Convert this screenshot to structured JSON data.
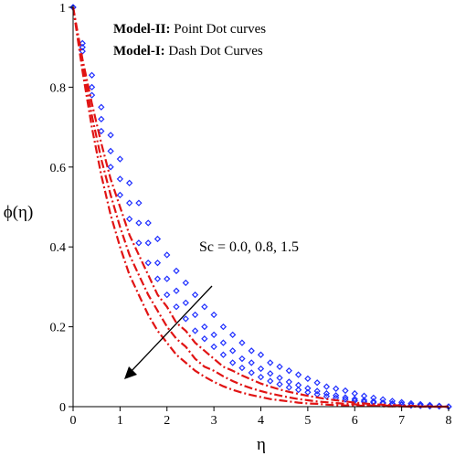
{
  "chart_data": {
    "type": "line",
    "xlabel": "η",
    "ylabel": "ϕ(η)",
    "xlim": [
      0,
      8
    ],
    "ylim": [
      0,
      1
    ],
    "x_ticks": [
      "0",
      "1",
      "2",
      "3",
      "4",
      "5",
      "6",
      "7",
      "8"
    ],
    "y_ticks": [
      "0",
      "0.2",
      "0.4",
      "0.6",
      "0.8",
      "1"
    ],
    "legend": [
      {
        "bold": "Model-II:",
        "text": " Point Dot curves"
      },
      {
        "bold": "Model-I:",
        "text": " Dash Dot Curves"
      }
    ],
    "annotation": "Sc = 0.0, 0.8, 1.5",
    "colors": {
      "model_ii": "#1f2fff",
      "model_i": "#e11414",
      "arrow": "#000000"
    },
    "series": [
      {
        "model": "Model-II",
        "style": "point-dot",
        "color": "#1f2fff",
        "x": [
          0,
          0.2,
          0.4,
          0.6,
          0.8,
          1,
          1.2,
          1.4,
          1.6,
          1.8,
          2,
          2.2,
          2.4,
          2.6,
          2.8,
          3,
          3.2,
          3.4,
          3.6,
          3.8,
          4,
          4.2,
          4.4,
          4.6,
          4.8,
          5,
          5.2,
          5.4,
          5.6,
          5.8,
          6,
          6.2,
          6.4,
          6.6,
          6.8,
          7,
          7.2,
          7.4,
          7.6,
          7.8,
          8
        ],
        "y": [
          1,
          0.91,
          0.83,
          0.75,
          0.68,
          0.62,
          0.56,
          0.51,
          0.46,
          0.42,
          0.38,
          0.34,
          0.31,
          0.28,
          0.25,
          0.23,
          0.2,
          0.18,
          0.16,
          0.14,
          0.13,
          0.11,
          0.1,
          0.09,
          0.08,
          0.07,
          0.06,
          0.05,
          0.045,
          0.04,
          0.033,
          0.027,
          0.022,
          0.018,
          0.014,
          0.011,
          0.008,
          0.006,
          0.004,
          0.002,
          0
        ]
      },
      {
        "model": "Model-II",
        "style": "point-dot",
        "color": "#1f2fff",
        "x": [
          0,
          0.2,
          0.4,
          0.6,
          0.8,
          1,
          1.2,
          1.4,
          1.6,
          1.8,
          2,
          2.2,
          2.4,
          2.6,
          2.8,
          3,
          3.2,
          3.4,
          3.6,
          3.8,
          4,
          4.2,
          4.4,
          4.6,
          4.8,
          5,
          5.2,
          5.4,
          5.6,
          5.8,
          6,
          6.2,
          6.4,
          6.6,
          6.8,
          7,
          7.2,
          7.4,
          7.6,
          7.8,
          8
        ],
        "y": [
          1,
          0.9,
          0.8,
          0.72,
          0.64,
          0.57,
          0.51,
          0.46,
          0.41,
          0.36,
          0.32,
          0.29,
          0.26,
          0.23,
          0.2,
          0.18,
          0.16,
          0.14,
          0.12,
          0.11,
          0.095,
          0.083,
          0.072,
          0.062,
          0.054,
          0.046,
          0.039,
          0.033,
          0.028,
          0.023,
          0.019,
          0.016,
          0.013,
          0.01,
          0.008,
          0.006,
          0.004,
          0.003,
          0.002,
          0.001,
          0
        ]
      },
      {
        "model": "Model-II",
        "style": "point-dot",
        "color": "#1f2fff",
        "x": [
          0,
          0.2,
          0.4,
          0.6,
          0.8,
          1,
          1.2,
          1.4,
          1.6,
          1.8,
          2,
          2.2,
          2.4,
          2.6,
          2.8,
          3,
          3.2,
          3.4,
          3.6,
          3.8,
          4,
          4.2,
          4.4,
          4.6,
          4.8,
          5,
          5.2,
          5.4,
          5.6,
          5.8,
          6,
          6.2,
          6.4,
          6.6,
          6.8,
          7,
          7.2,
          7.4,
          7.6,
          7.8,
          8
        ],
        "y": [
          1,
          0.89,
          0.78,
          0.69,
          0.6,
          0.53,
          0.47,
          0.41,
          0.36,
          0.32,
          0.28,
          0.25,
          0.22,
          0.19,
          0.17,
          0.15,
          0.13,
          0.11,
          0.097,
          0.085,
          0.074,
          0.064,
          0.056,
          0.048,
          0.042,
          0.036,
          0.031,
          0.026,
          0.022,
          0.018,
          0.015,
          0.012,
          0.01,
          0.008,
          0.006,
          0.005,
          0.003,
          0.002,
          0.001,
          0.001,
          0
        ]
      },
      {
        "model": "Model-I",
        "style": "dash-dot",
        "color": "#e11414",
        "x": [
          0,
          0.2,
          0.4,
          0.6,
          0.8,
          1,
          1.2,
          1.4,
          1.6,
          1.8,
          2,
          2.2,
          2.4,
          2.6,
          2.8,
          3,
          3.2,
          3.4,
          3.6,
          3.8,
          4,
          4.2,
          4.4,
          4.6,
          4.8,
          5,
          5.2,
          5.4,
          5.6,
          5.8,
          6,
          6.2,
          6.4,
          6.6,
          6.8,
          7,
          7.2,
          7.4,
          7.6,
          7.8,
          8
        ],
        "y": [
          1,
          0.87,
          0.76,
          0.66,
          0.57,
          0.5,
          0.43,
          0.38,
          0.33,
          0.28,
          0.25,
          0.21,
          0.19,
          0.16,
          0.14,
          0.12,
          0.1,
          0.09,
          0.078,
          0.068,
          0.058,
          0.05,
          0.043,
          0.037,
          0.032,
          0.027,
          0.023,
          0.019,
          0.016,
          0.013,
          0.01,
          0.008,
          0.006,
          0.005,
          0.004,
          0.003,
          0.002,
          0.001,
          0.001,
          0,
          0
        ]
      },
      {
        "model": "Model-I",
        "style": "dash-dot",
        "color": "#e11414",
        "x": [
          0,
          0.2,
          0.4,
          0.6,
          0.8,
          1,
          1.2,
          1.4,
          1.6,
          1.8,
          2,
          2.2,
          2.4,
          2.6,
          2.8,
          3,
          3.2,
          3.4,
          3.6,
          3.8,
          4,
          4.2,
          4.4,
          4.6,
          4.8,
          5,
          5.2,
          5.4,
          5.6,
          5.8,
          6,
          6.2,
          6.4,
          6.6,
          6.8,
          7,
          7.2,
          7.4,
          7.6,
          7.8,
          8
        ],
        "y": [
          1,
          0.86,
          0.73,
          0.62,
          0.53,
          0.45,
          0.38,
          0.33,
          0.28,
          0.24,
          0.2,
          0.17,
          0.15,
          0.12,
          0.1,
          0.09,
          0.076,
          0.064,
          0.054,
          0.046,
          0.039,
          0.033,
          0.028,
          0.023,
          0.019,
          0.016,
          0.013,
          0.011,
          0.009,
          0.007,
          0.006,
          0.004,
          0.003,
          0.003,
          0.002,
          0.001,
          0.001,
          0.001,
          0,
          0,
          0
        ]
      },
      {
        "model": "Model-I",
        "style": "dash-dot",
        "color": "#e11414",
        "x": [
          0,
          0.2,
          0.4,
          0.6,
          0.8,
          1,
          1.2,
          1.4,
          1.6,
          1.8,
          2,
          2.2,
          2.4,
          2.6,
          2.8,
          3,
          3.2,
          3.4,
          3.6,
          3.8,
          4,
          4.2,
          4.4,
          4.6,
          4.8,
          5,
          5.2,
          5.4,
          5.6,
          5.8,
          6,
          6.2,
          6.4,
          6.6,
          6.8,
          7,
          7.2,
          7.4,
          7.6,
          7.8,
          8
        ],
        "y": [
          1,
          0.84,
          0.7,
          0.58,
          0.48,
          0.4,
          0.33,
          0.28,
          0.23,
          0.19,
          0.16,
          0.13,
          0.11,
          0.09,
          0.075,
          0.062,
          0.051,
          0.042,
          0.035,
          0.029,
          0.024,
          0.019,
          0.016,
          0.013,
          0.01,
          0.008,
          0.007,
          0.005,
          0.004,
          0.003,
          0.003,
          0.002,
          0.002,
          0.001,
          0.001,
          0.001,
          0,
          0,
          0,
          0,
          0
        ]
      }
    ]
  }
}
